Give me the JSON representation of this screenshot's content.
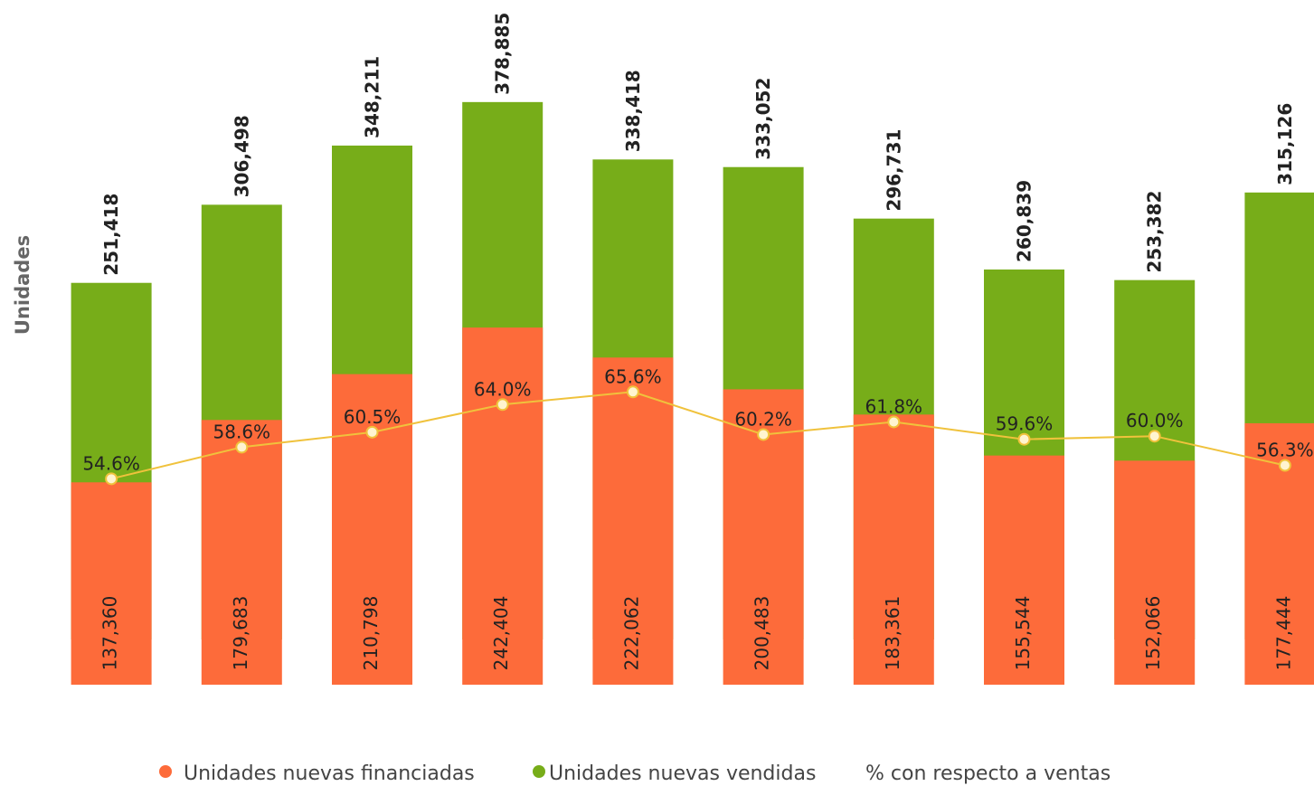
{
  "chart_data": {
    "type": "bar",
    "y_label": "Unidades",
    "categories": [
      null,
      null,
      null,
      null,
      null,
      null,
      null,
      null,
      null,
      null
    ],
    "ylim": [
      0,
      440000
    ],
    "y2lim": [
      0,
      450000
    ],
    "y3lim": [
      0,
      100
    ],
    "series": [
      {
        "name": "Unidades nuevas financiadas",
        "color": "#fd6b3a",
        "axis": "y2",
        "values": [
          137360,
          179683,
          210798,
          242404,
          222062,
          200483,
          183361,
          155544,
          152066,
          177444
        ],
        "value_labels": [
          "137,360",
          "179,683",
          "210,798",
          "242,404",
          "222,062",
          "200,483",
          "183,361",
          "155,544",
          "152,066",
          "177,444"
        ]
      },
      {
        "name": "Unidades nuevas vendidas",
        "color": "#77ad19",
        "values": [
          251418,
          306498,
          348211,
          378885,
          338418,
          333052,
          296731,
          260839,
          253382,
          315126
        ],
        "value_labels": [
          "251,418",
          "306,498",
          "348,211",
          "378,885",
          "338,418",
          "333,052",
          "296,731",
          "260,839",
          "253,382",
          "315,126"
        ]
      },
      {
        "name": "% con respecto a ventas",
        "type": "line",
        "color": "#f0c23c",
        "axis": "y3",
        "values": [
          54.6,
          58.6,
          60.5,
          64.0,
          65.6,
          60.2,
          61.8,
          59.6,
          60.0,
          56.3
        ],
        "value_labels": [
          "54.6%",
          "58.6%",
          "60.5%",
          "64.0%",
          "65.6%",
          "60.2%",
          "61.8%",
          "59.6%",
          "60.0%",
          "56.3%"
        ]
      }
    ]
  }
}
